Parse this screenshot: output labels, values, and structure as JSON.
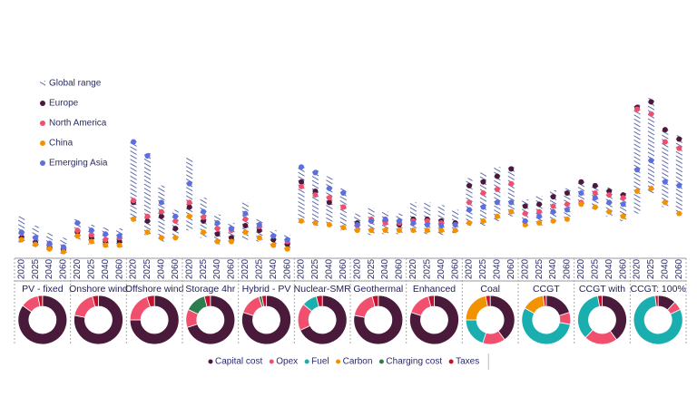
{
  "chart_data": [
    {
      "type": "range-dot",
      "groups": [
        "PV - fixed",
        "Onshore wind",
        "Offshore wind",
        "Storage 4hr",
        "Hybrid - PV",
        "Nuclear-SMR",
        "Geothermal",
        "Enhanced",
        "Coal",
        "CCGT",
        "CCGT with",
        "CCGT: 100%"
      ],
      "years": [
        "2020",
        "2025",
        "2040",
        "2060"
      ],
      "ylim": [
        0,
        180
      ],
      "series": [
        {
          "name": "Global range",
          "color": "#3b4a9a",
          "low": [
            17,
            12,
            8,
            5,
            20,
            15,
            12,
            12,
            40,
            25,
            18,
            22,
            30,
            22,
            15,
            16,
            20,
            18,
            12,
            10,
            38,
            35,
            35,
            30,
            28,
            25,
            26,
            26,
            28,
            26,
            25,
            27,
            35,
            35,
            40,
            45,
            35,
            35,
            40,
            42,
            58,
            52,
            45,
            40,
            48,
            70,
            55,
            48
          ],
          "high": [
            45,
            35,
            27,
            22,
            42,
            36,
            33,
            32,
            127,
            113,
            78,
            52,
            108,
            65,
            47,
            38,
            60,
            42,
            30,
            25,
            100,
            95,
            88,
            75,
            48,
            54,
            50,
            48,
            60,
            60,
            57,
            52,
            86,
            92,
            98,
            98,
            63,
            67,
            73,
            75,
            84,
            80,
            76,
            70,
            165,
            172,
            140,
            132
          ]
        },
        {
          "name": "Europe",
          "color": "#4a1a3a",
          "values": [
            22,
            17,
            12,
            9,
            28,
            22,
            18,
            18,
            60,
            40,
            45,
            32,
            55,
            40,
            26,
            22,
            35,
            30,
            20,
            15,
            82,
            72,
            60,
            55,
            38,
            40,
            40,
            36,
            42,
            42,
            40,
            38,
            78,
            82,
            88,
            96,
            56,
            58,
            66,
            70,
            82,
            78,
            72,
            68,
            162,
            168,
            138,
            128
          ]
        },
        {
          "name": "North America",
          "color": "#f0506e",
          "values": [
            27,
            22,
            15,
            12,
            30,
            25,
            20,
            22,
            62,
            45,
            50,
            40,
            60,
            44,
            32,
            30,
            42,
            34,
            24,
            18,
            77,
            68,
            65,
            55,
            35,
            42,
            38,
            38,
            40,
            40,
            38,
            36,
            60,
            70,
            74,
            80,
            48,
            50,
            56,
            58,
            60,
            70,
            68,
            65,
            160,
            155,
            125,
            118
          ]
        },
        {
          "name": "China",
          "color": "#f39200",
          "values": [
            20,
            15,
            10,
            7,
            24,
            18,
            14,
            14,
            42,
            28,
            22,
            22,
            45,
            28,
            18,
            18,
            28,
            22,
            14,
            10,
            40,
            38,
            36,
            33,
            30,
            30,
            30,
            30,
            30,
            30,
            30,
            30,
            38,
            40,
            45,
            50,
            36,
            38,
            40,
            42,
            58,
            55,
            50,
            45,
            72,
            75,
            60,
            48
          ]
        },
        {
          "name": "Emerging Asia",
          "color": "#5a6fe0",
          "values": [
            28,
            22,
            16,
            12,
            38,
            30,
            26,
            24,
            125,
            110,
            60,
            45,
            80,
            50,
            38,
            32,
            48,
            36,
            24,
            20,
            98,
            92,
            75,
            70,
            36,
            40,
            42,
            40,
            38,
            36,
            35,
            36,
            52,
            55,
            60,
            60,
            40,
            45,
            50,
            52,
            70,
            65,
            60,
            58,
            95,
            105,
            82,
            78
          ]
        }
      ]
    },
    {
      "type": "donut",
      "series": [
        {
          "name": "Capital cost",
          "color": "#4a1a3a",
          "values": [
            85,
            78,
            75,
            70,
            80,
            68,
            78,
            80,
            40,
            20,
            40,
            12
          ]
        },
        {
          "name": "Opex",
          "color": "#f0506e",
          "values": [
            12,
            18,
            20,
            12,
            15,
            18,
            18,
            16,
            15,
            8,
            22,
            6
          ]
        },
        {
          "name": "Fuel",
          "color": "#1aaeae",
          "values": [
            0,
            0,
            0,
            0,
            0,
            10,
            0,
            0,
            20,
            55,
            35,
            80
          ]
        },
        {
          "name": "Carbon",
          "color": "#f39200",
          "values": [
            0,
            0,
            0,
            0,
            0,
            0,
            0,
            0,
            22,
            15,
            0,
            0
          ]
        },
        {
          "name": "Charging cost",
          "color": "#2e7d4f",
          "values": [
            0,
            0,
            0,
            14,
            2,
            0,
            0,
            0,
            0,
            0,
            0,
            0
          ]
        },
        {
          "name": "Taxes",
          "color": "#c8102e",
          "values": [
            3,
            4,
            5,
            4,
            3,
            4,
            4,
            4,
            3,
            2,
            3,
            2
          ]
        }
      ]
    }
  ]
}
